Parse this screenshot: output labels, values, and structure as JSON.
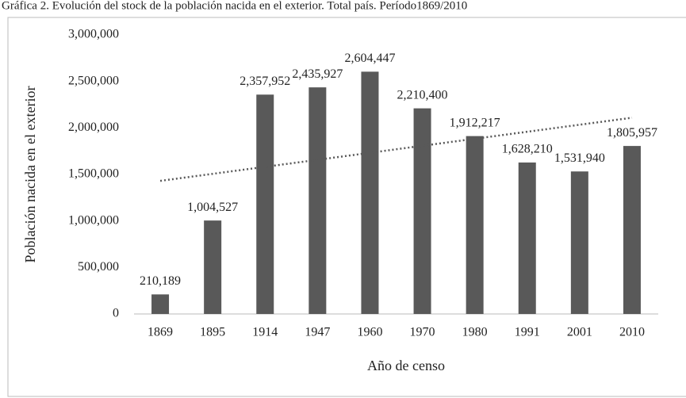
{
  "chart_data": {
    "type": "bar",
    "title": "Gráfica 2. Evolución del stock de la población nacida en el exterior. Total país. Período1869/2010",
    "xlabel": "Año de censo",
    "ylabel": "Población nacida en el exterior",
    "categories": [
      "1869",
      "1895",
      "1914",
      "1947",
      "1960",
      "1970",
      "1980",
      "1991",
      "2001",
      "2010"
    ],
    "values": [
      210189,
      1004527,
      2357952,
      2435927,
      2604447,
      2210400,
      1912217,
      1628210,
      1531940,
      1805957
    ],
    "value_labels": [
      "210,189",
      "1,004,527",
      "2,357,952",
      "2,435,927",
      "2,604,447",
      "2,210,400",
      "1,912,217",
      "1,628,210",
      "1,531,940",
      "1,805,957"
    ],
    "color": "#595959",
    "trendline": "linear",
    "ylim": [
      0,
      3000000
    ],
    "yticks": [
      0,
      {
        "value": 500000,
        "label": "500,000"
      },
      {
        "value": 1000000,
        "label": "1,000,000"
      },
      {
        "value": 1500000,
        "label": "1,500,000"
      },
      {
        "value": 2000000,
        "label": "2,000,000"
      },
      {
        "value": 2500000,
        "label": "2,500,000"
      },
      {
        "value": 3000000,
        "label": "3,000,000"
      }
    ],
    "grid": false
  }
}
